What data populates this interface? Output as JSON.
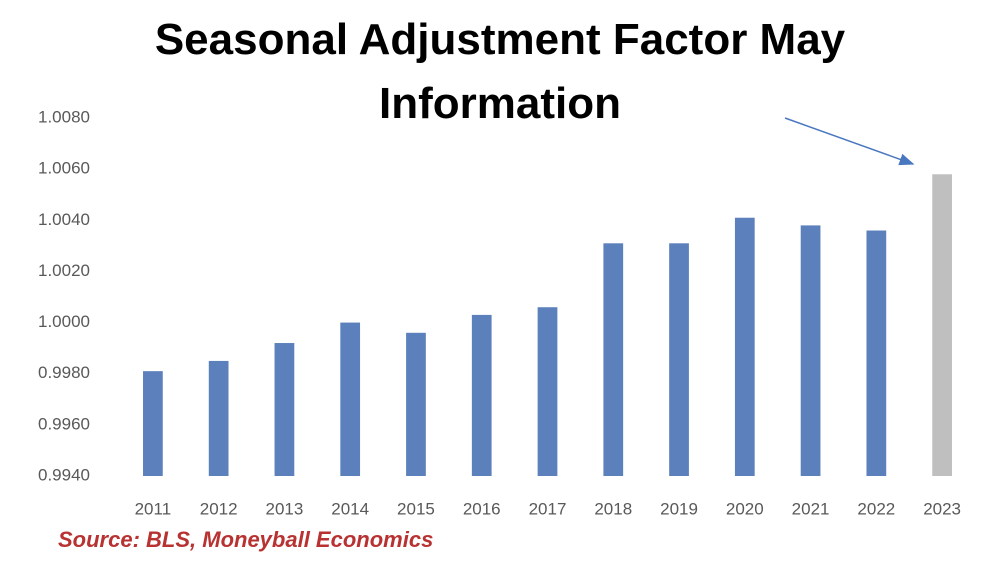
{
  "chart_data": {
    "type": "bar",
    "title": "Seasonal Adjustment Factor May Information",
    "source": "Source: BLS, Moneyball Economics",
    "categories": [
      "2011",
      "2012",
      "2013",
      "2014",
      "2015",
      "2016",
      "2017",
      "2018",
      "2019",
      "2020",
      "2021",
      "2022",
      "2023"
    ],
    "values": [
      0.9981,
      0.9985,
      0.9992,
      1.0,
      0.9996,
      1.0003,
      1.0006,
      1.0031,
      1.0031,
      1.0041,
      1.0038,
      1.0036,
      1.0058
    ],
    "colors": [
      "#5b80bb",
      "#5b80bb",
      "#5b80bb",
      "#5b80bb",
      "#5b80bb",
      "#5b80bb",
      "#5b80bb",
      "#5b80bb",
      "#5b80bb",
      "#5b80bb",
      "#5b80bb",
      "#5b80bb",
      "#bfbfbf"
    ],
    "ylim": [
      0.994,
      1.008
    ],
    "yticks": [
      {
        "value": 0.994,
        "label": "0.9940"
      },
      {
        "value": 0.996,
        "label": "0.9960"
      },
      {
        "value": 0.998,
        "label": "0.9980"
      },
      {
        "value": 1.0,
        "label": "1.0000"
      },
      {
        "value": 1.002,
        "label": "1.0020"
      },
      {
        "value": 1.004,
        "label": "1.0040"
      },
      {
        "value": 1.006,
        "label": "1.0060"
      },
      {
        "value": 1.008,
        "label": "1.0080"
      }
    ],
    "grid": false
  }
}
